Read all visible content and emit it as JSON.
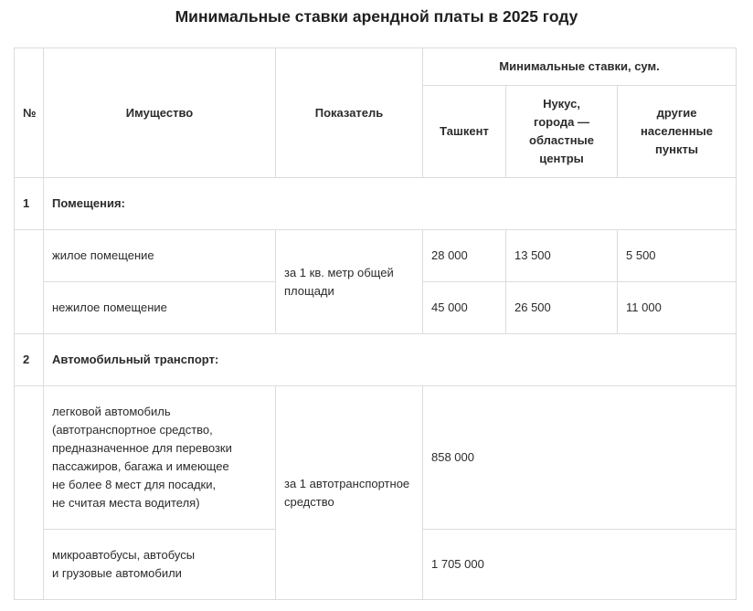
{
  "title": "Минимальные ставки арендной платы в 2025 году",
  "header": {
    "num": "№",
    "property": "Имущество",
    "indicator": "Показатель",
    "rates_group": "Минимальные ставки, сум.",
    "tashkent": "Ташкент",
    "nukus_lines": [
      "Нукус,",
      "города —",
      "областные",
      "центры"
    ],
    "other_lines": [
      "другие",
      "населенные",
      "пункты"
    ]
  },
  "sections": [
    {
      "num": "1",
      "title": "Помещения:",
      "indicator": [
        "за 1 кв. метр общей",
        "площади"
      ],
      "rows": [
        {
          "property": [
            "жилое помещение"
          ],
          "tashkent": "28 000",
          "nukus": "13 500",
          "other": "5 500"
        },
        {
          "property": [
            "нежилое помещение"
          ],
          "tashkent": "45 000",
          "nukus": "26 500",
          "other": "11 000"
        }
      ]
    },
    {
      "num": "2",
      "title": "Автомобильный транспорт:",
      "indicator": [
        "за 1 автотранспортное",
        "средство"
      ],
      "rows": [
        {
          "property": [
            "легковой автомобиль",
            "(автотранспортное средство,",
            "предназначенное для перевозки",
            "пассажиров, багажа и имеющее",
            "не более 8 мест для посадки,",
            "не считая места водителя)"
          ],
          "value": "858 000"
        },
        {
          "property": [
            "микроавтобусы, автобусы",
            "и грузовые автомобили"
          ],
          "value": "1 705 000"
        }
      ]
    }
  ]
}
